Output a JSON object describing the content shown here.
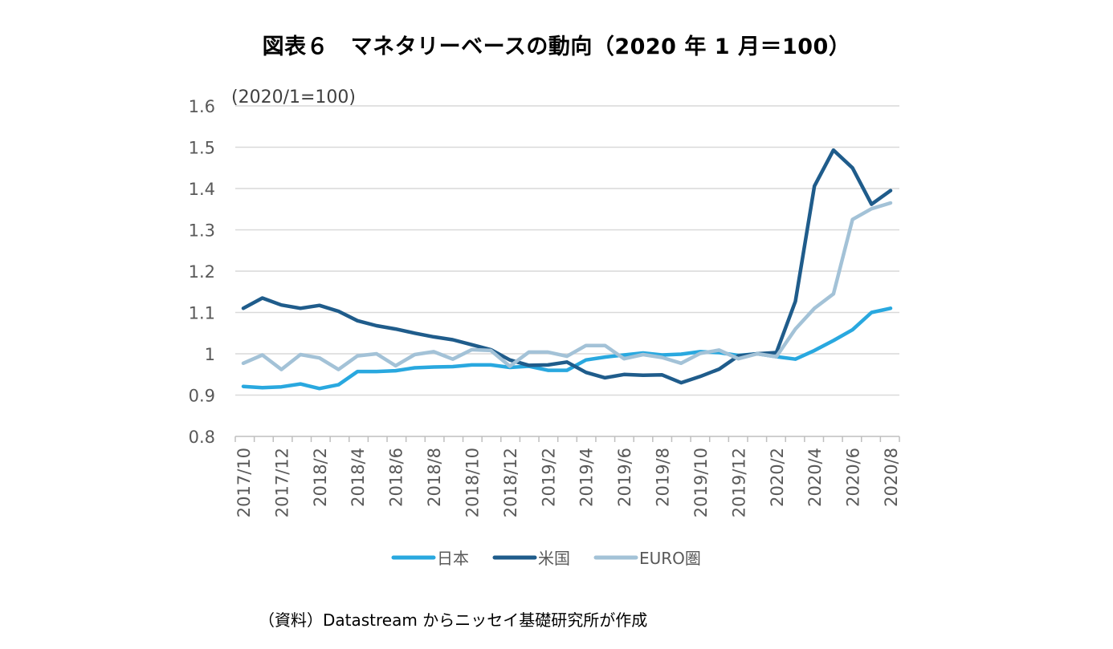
{
  "title": "図表６　マネタリーベースの動向（2020 年 1 月＝100）",
  "source": "（資料）Datastream からニッセイ基礎研究所が作成",
  "chart_data": {
    "type": "line",
    "unit_label": "(2020/1=100)",
    "ylim": [
      0.8,
      1.6
    ],
    "yticks": [
      0.8,
      0.9,
      1,
      1.1,
      1.2,
      1.3,
      1.4,
      1.5,
      1.6
    ],
    "ytick_labels": [
      "0.8",
      "0.9",
      "1",
      "1.1",
      "1.2",
      "1.3",
      "1.4",
      "1.5",
      "1.6"
    ],
    "grid": true,
    "legend_position": "bottom",
    "x": [
      "2017/10",
      "2017/11",
      "2017/12",
      "2018/1",
      "2018/2",
      "2018/3",
      "2018/4",
      "2018/5",
      "2018/6",
      "2018/7",
      "2018/8",
      "2018/9",
      "2018/10",
      "2018/11",
      "2018/12",
      "2019/1",
      "2019/2",
      "2019/3",
      "2019/4",
      "2019/5",
      "2019/6",
      "2019/7",
      "2019/8",
      "2019/9",
      "2019/10",
      "2019/11",
      "2019/12",
      "2020/1",
      "2020/2",
      "2020/3",
      "2020/4",
      "2020/5",
      "2020/6",
      "2020/7",
      "2020/8"
    ],
    "xtick_labels": [
      "2017/10",
      "2017/12",
      "2018/2",
      "2018/4",
      "2018/6",
      "2018/8",
      "2018/10",
      "2018/12",
      "2019/2",
      "2019/4",
      "2019/6",
      "2019/8",
      "2019/10",
      "2019/12",
      "2020/2",
      "2020/4",
      "2020/6",
      "2020/8"
    ],
    "series": [
      {
        "name": "日本",
        "color": "#29A8DF",
        "values": [
          0.921,
          0.918,
          0.92,
          0.927,
          0.916,
          0.925,
          0.957,
          0.957,
          0.959,
          0.966,
          0.968,
          0.969,
          0.973,
          0.973,
          0.967,
          0.97,
          0.96,
          0.96,
          0.985,
          0.992,
          0.997,
          1.002,
          0.997,
          0.999,
          1.005,
          1.003,
          0.996,
          1.0,
          0.993,
          0.987,
          1.008,
          1.032,
          1.058,
          1.1,
          1.11
        ]
      },
      {
        "name": "米国",
        "color": "#1F5C8B",
        "values": [
          1.11,
          1.135,
          1.118,
          1.11,
          1.117,
          1.103,
          1.08,
          1.068,
          1.06,
          1.05,
          1.041,
          1.034,
          1.022,
          1.01,
          0.985,
          0.972,
          0.973,
          0.98,
          0.955,
          0.942,
          0.95,
          0.948,
          0.949,
          0.93,
          0.945,
          0.963,
          0.995,
          1.0,
          1.003,
          1.127,
          1.406,
          1.493,
          1.45,
          1.362,
          1.395
        ]
      },
      {
        "name": "EURO圏",
        "color": "#A3C2D7",
        "values": [
          0.977,
          0.997,
          0.962,
          0.998,
          0.99,
          0.962,
          0.995,
          1.0,
          0.971,
          0.998,
          1.005,
          0.987,
          1.01,
          1.008,
          0.97,
          1.004,
          1.004,
          0.994,
          1.02,
          1.02,
          0.988,
          0.998,
          0.991,
          0.977,
          1.001,
          1.009,
          0.988,
          1.0,
          0.993,
          1.06,
          1.11,
          1.145,
          1.325,
          1.351,
          1.365
        ]
      }
    ]
  }
}
